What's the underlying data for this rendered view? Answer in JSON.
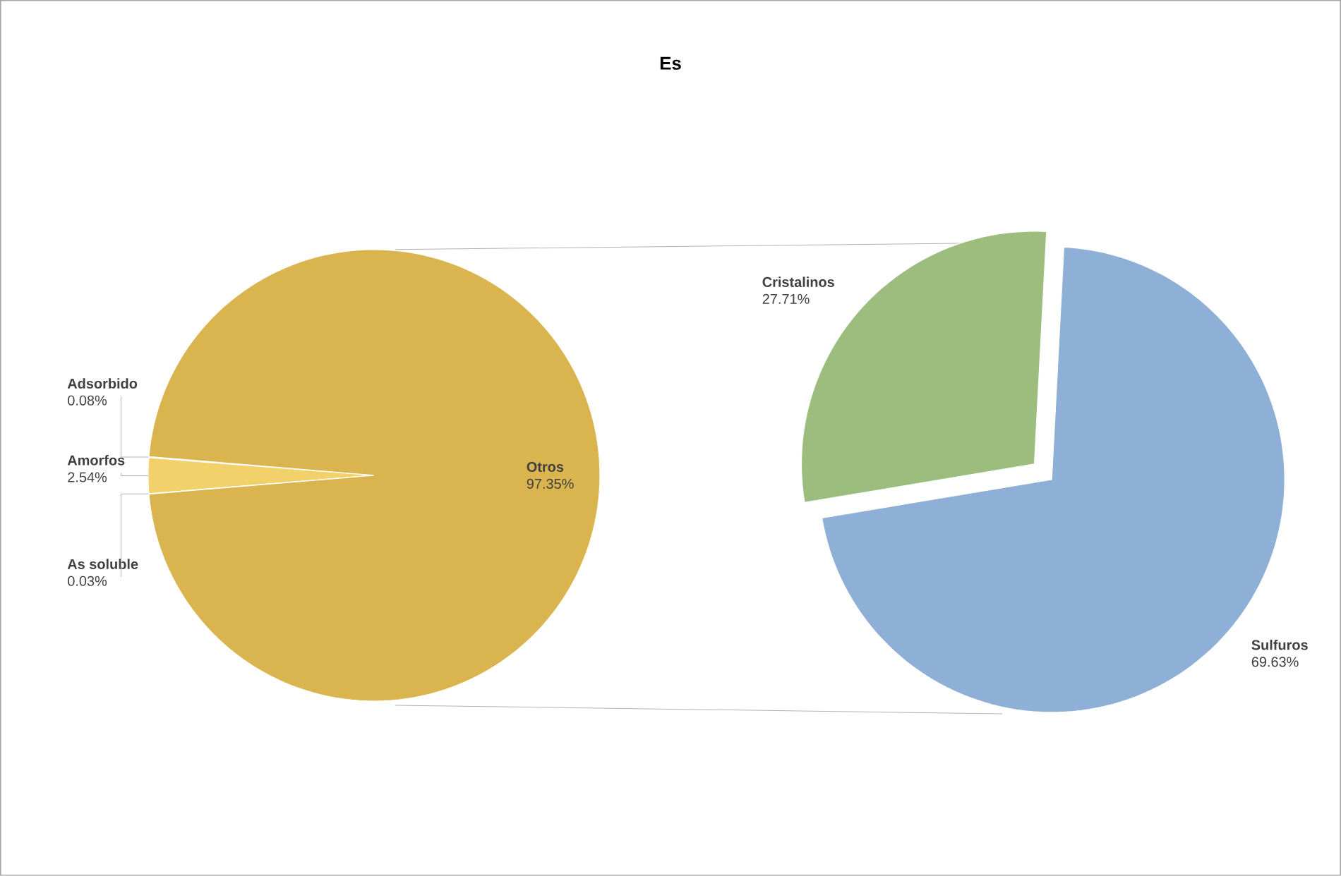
{
  "chart_data": [
    {
      "type": "pie",
      "title": "Es",
      "categories": [
        "Adsorbido",
        "Amorfos",
        "As soluble",
        "Otros"
      ],
      "values": [
        0.08,
        2.54,
        0.03,
        97.35
      ],
      "colors": [
        "#f2d06a",
        "#f2d06a",
        "#f2d06a",
        "#dab54f"
      ],
      "value_labels": [
        "0.08%",
        "2.54%",
        "0.03%",
        "97.35%"
      ]
    },
    {
      "type": "pie",
      "categories": [
        "Cristalinos",
        "Sulfuros"
      ],
      "values": [
        27.71,
        69.63
      ],
      "colors": [
        "#9cbd7d",
        "#8eb0d6"
      ],
      "value_labels": [
        "27.71%",
        "69.63%"
      ]
    }
  ]
}
